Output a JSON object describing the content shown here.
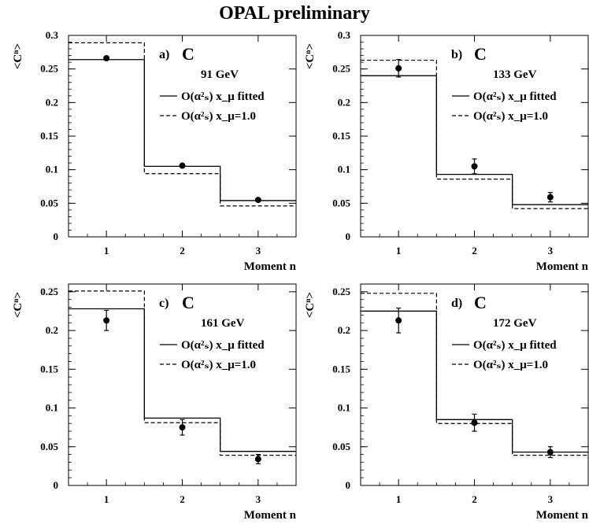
{
  "figure": {
    "title": "OPAL preliminary",
    "legend": {
      "solid_label": "O(α²ₛ) x_μ fitted",
      "dashed_label": "O(α²ₛ) x_μ=1.0"
    },
    "observable_symbol": "C",
    "xlabel": "Moment n",
    "ylabel": "<Cⁿ>"
  },
  "chart_data": [
    {
      "type": "scatter",
      "panel": "a)",
      "energy": "91 GeV",
      "ylim": [
        0,
        0.3
      ],
      "yticks": [
        "0",
        "0.05",
        "0.1",
        "0.15",
        "0.2",
        "0.25",
        "0.3"
      ],
      "categories": [
        "1",
        "2",
        "3"
      ],
      "data": {
        "x": [
          1,
          2,
          3
        ],
        "y": [
          0.266,
          0.106,
          0.055
        ],
        "err": [
          0.002,
          0.001,
          0.001
        ]
      },
      "fitted": [
        0.264,
        0.105,
        0.054
      ],
      "xmu_1": [
        0.289,
        0.094,
        0.046
      ]
    },
    {
      "type": "scatter",
      "panel": "b)",
      "energy": "133 GeV",
      "ylim": [
        0,
        0.3
      ],
      "yticks": [
        "0",
        "0.05",
        "0.1",
        "0.15",
        "0.2",
        "0.25",
        "0.3"
      ],
      "categories": [
        "1",
        "2",
        "3"
      ],
      "data": {
        "x": [
          1,
          2,
          3
        ],
        "y": [
          0.251,
          0.105,
          0.059
        ],
        "err": [
          0.013,
          0.011,
          0.007
        ]
      },
      "fitted": [
        0.24,
        0.093,
        0.048
      ],
      "xmu_1": [
        0.263,
        0.086,
        0.042
      ]
    },
    {
      "type": "scatter",
      "panel": "c)",
      "energy": "161 GeV",
      "ylim": [
        0,
        0.26
      ],
      "yticks": [
        "0",
        "0.05",
        "0.1",
        "0.15",
        "0.2",
        "0.25"
      ],
      "categories": [
        "1",
        "2",
        "3"
      ],
      "data": {
        "x": [
          1,
          2,
          3
        ],
        "y": [
          0.213,
          0.075,
          0.034
        ],
        "err": [
          0.013,
          0.01,
          0.006
        ]
      },
      "fitted": [
        0.228,
        0.087,
        0.044
      ],
      "xmu_1": [
        0.251,
        0.081,
        0.039
      ]
    },
    {
      "type": "scatter",
      "panel": "d)",
      "energy": "172 GeV",
      "ylim": [
        0,
        0.26
      ],
      "yticks": [
        "0",
        "0.05",
        "0.1",
        "0.15",
        "0.2",
        "0.25"
      ],
      "categories": [
        "1",
        "2",
        "3"
      ],
      "data": {
        "x": [
          1,
          2,
          3
        ],
        "y": [
          0.213,
          0.081,
          0.043
        ],
        "err": [
          0.016,
          0.011,
          0.007
        ]
      },
      "fitted": [
        0.225,
        0.085,
        0.043
      ],
      "xmu_1": [
        0.248,
        0.08,
        0.039
      ]
    }
  ]
}
